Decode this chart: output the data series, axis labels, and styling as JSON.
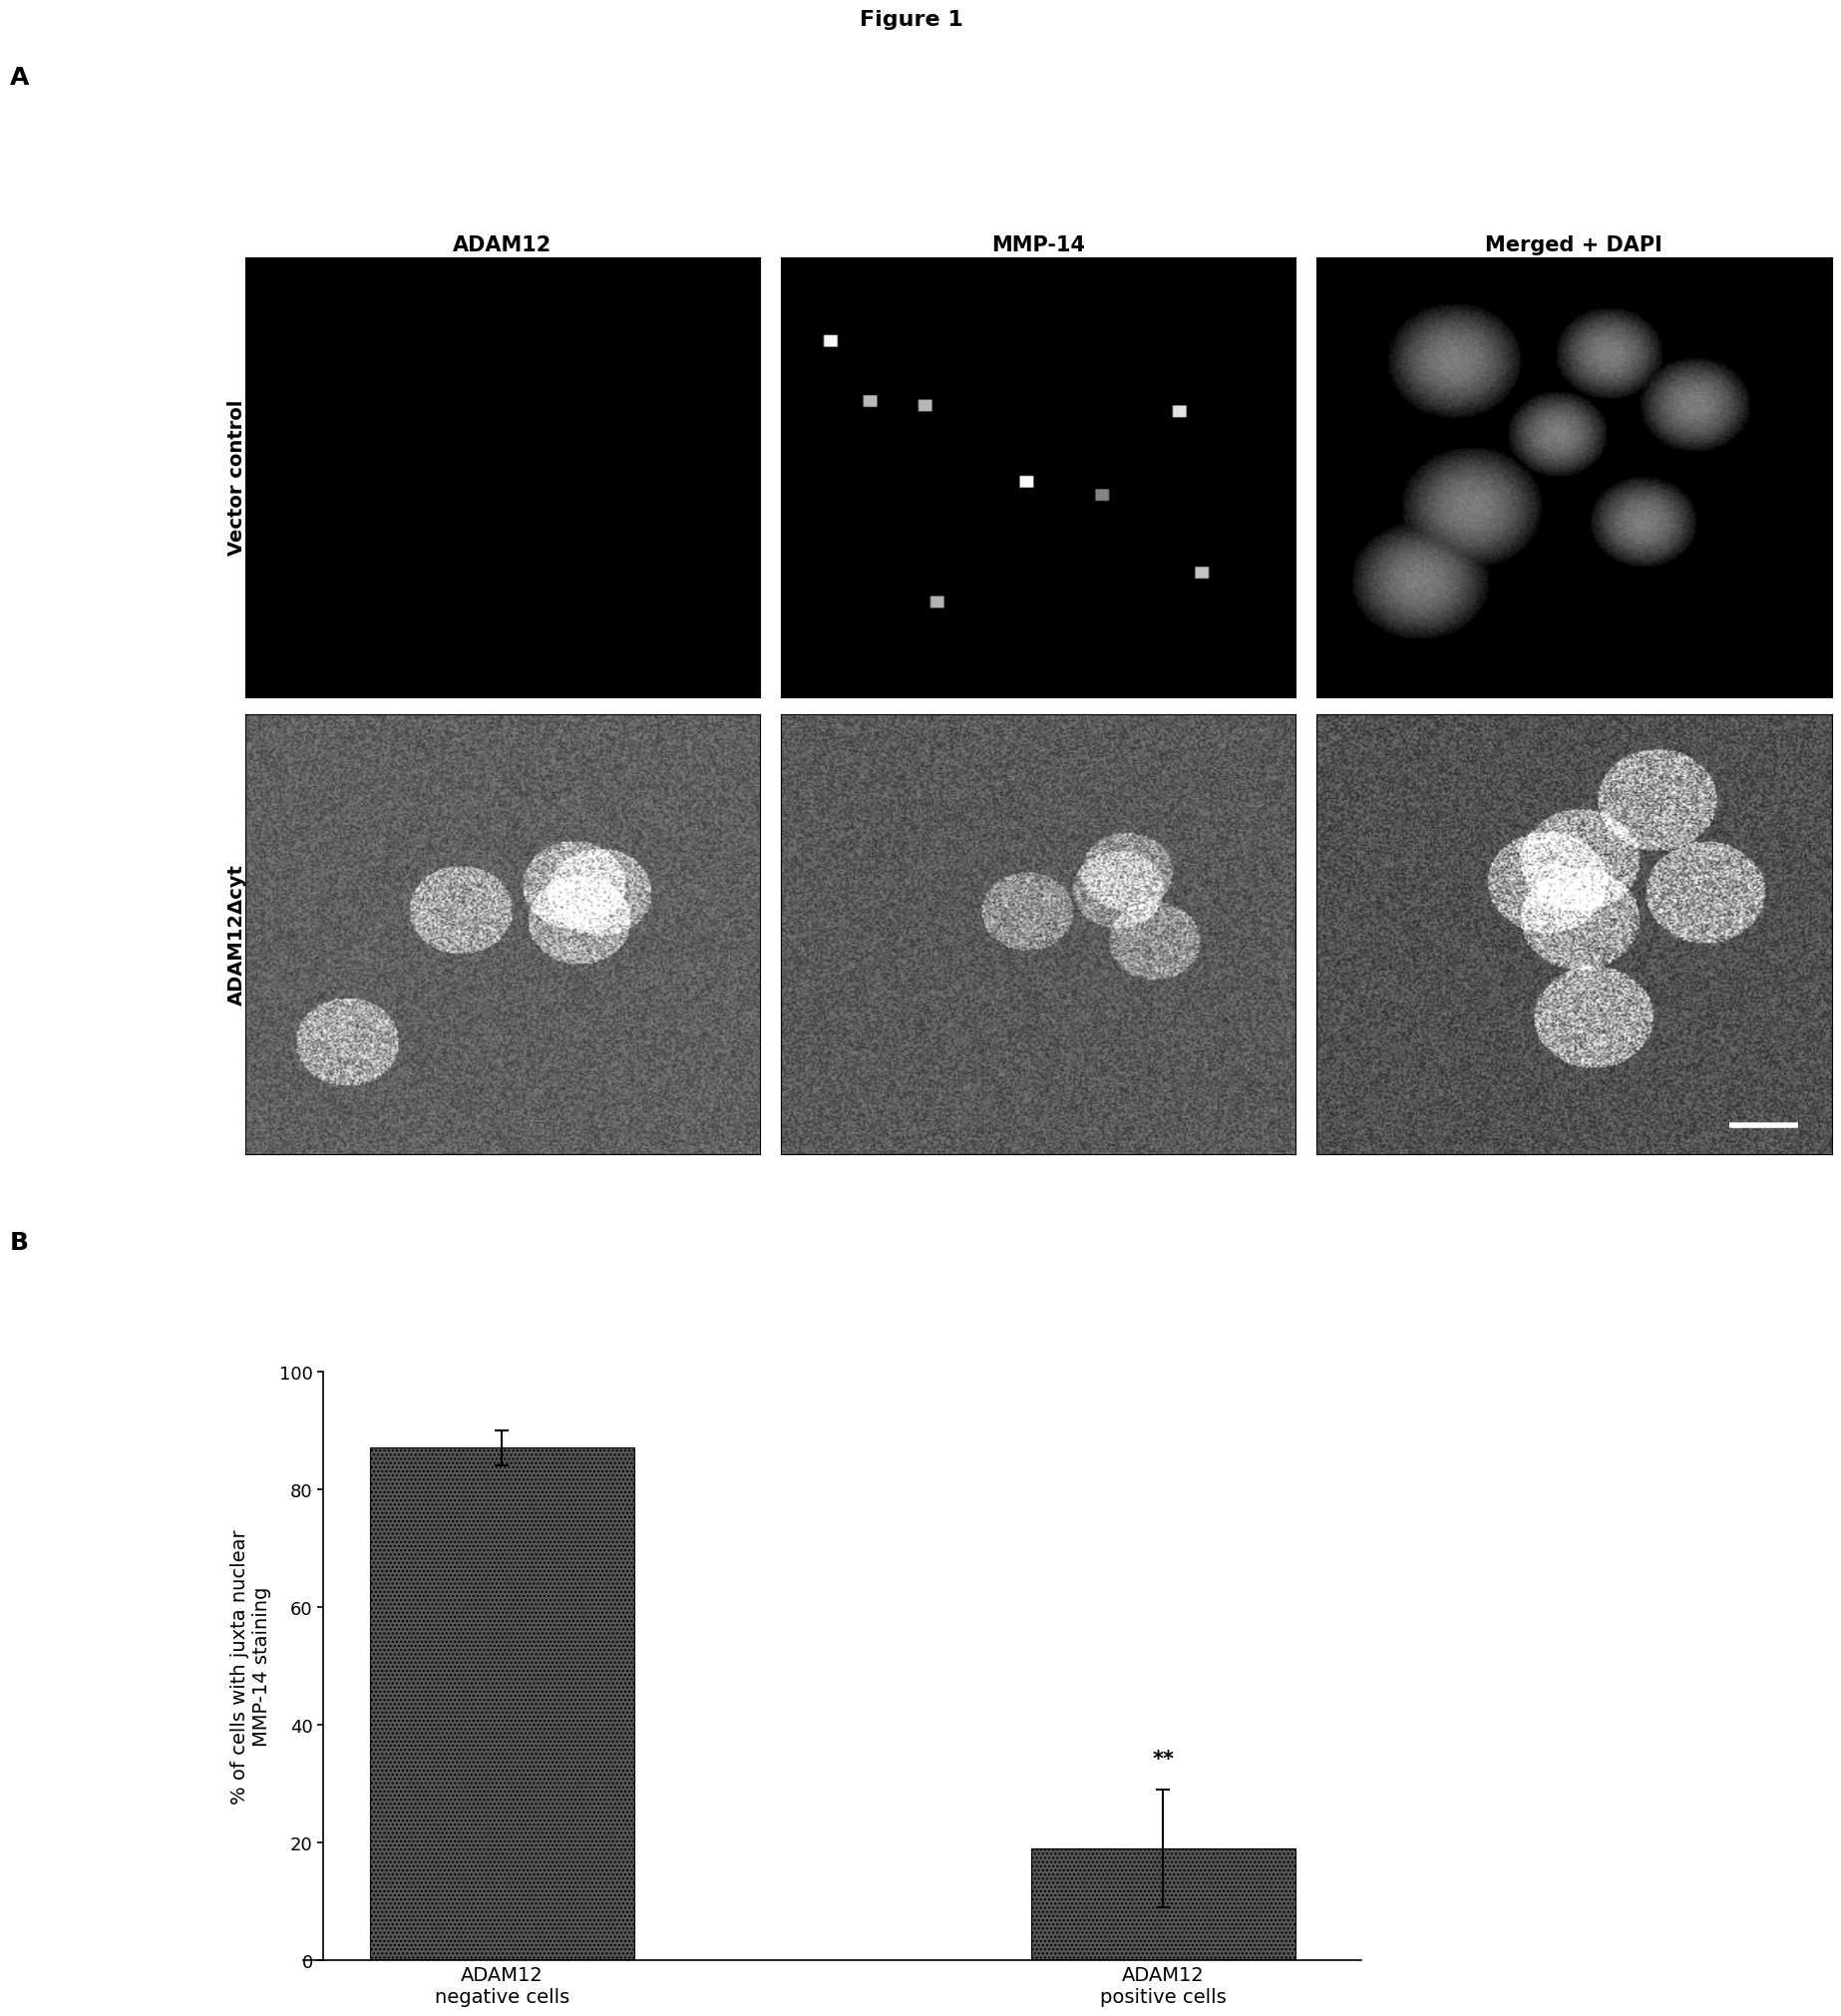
{
  "figure_title": "Figure 1",
  "panel_A_label": "A",
  "panel_B_label": "B",
  "col_labels": [
    "ADAM12",
    "MMP-14",
    "Merged + DAPI"
  ],
  "row_labels": [
    "Vector control",
    "ADAM12Δcyt"
  ],
  "bar_categories": [
    "ADAM12\nnegative cells",
    "ADAM12\npositive cells"
  ],
  "bar_values": [
    87.0,
    19.0
  ],
  "bar_errors": [
    3.0,
    10.0
  ],
  "bar_color": "#555555",
  "bar_hatch": "....",
  "ylabel": "% of cells with juxta nuclear\nMMP-14 staining",
  "ylim": [
    0,
    100
  ],
  "yticks": [
    0,
    20,
    40,
    60,
    80,
    100
  ],
  "significance_label": "**",
  "background_color": "#ffffff",
  "title_fontsize": 16,
  "label_fontsize": 15,
  "tick_fontsize": 13,
  "bar_width": 0.4
}
